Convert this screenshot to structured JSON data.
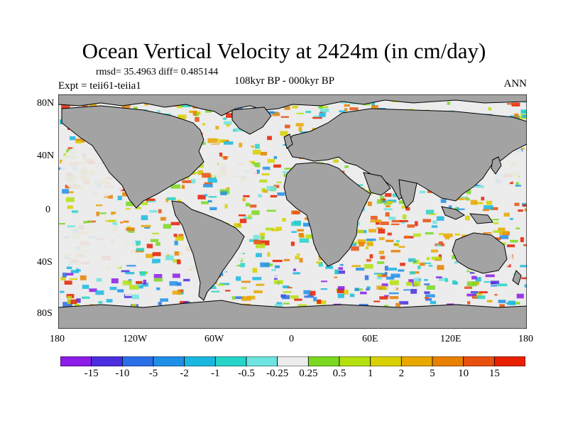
{
  "title": "Ocean Vertical Velocity at 2424m (in cm/day)",
  "stats": "rmsd= 35.4963 diff= 0.485144",
  "experiment": "Expt = teii61-teiia1",
  "period": "108kyr BP - 000kyr BP",
  "season": "ANN",
  "axes": {
    "x_ticks": [
      "180",
      "120W",
      "60W",
      "0",
      "60E",
      "120E",
      "180"
    ],
    "y_ticks": [
      "80N",
      "40N",
      "0",
      "40S",
      "80S"
    ]
  },
  "colorbar": {
    "labels": [
      "-15",
      "-10",
      "-5",
      "-2",
      "-1",
      "-0.5",
      "-0.25",
      "0.25",
      "0.5",
      "1",
      "2",
      "5",
      "10",
      "15"
    ],
    "colors": [
      "#8c1ce8",
      "#4a2ee0",
      "#2a6ee8",
      "#1e90e8",
      "#1ab8e0",
      "#26d4c8",
      "#6ee4e0",
      "#ececec",
      "#7ad820",
      "#b4e010",
      "#d8d000",
      "#e8a800",
      "#e88000",
      "#e85010",
      "#e82000"
    ]
  },
  "colors": {
    "land": "#a3a3a3",
    "neutral_ocean": "#ececec",
    "coastline": "#000000"
  }
}
